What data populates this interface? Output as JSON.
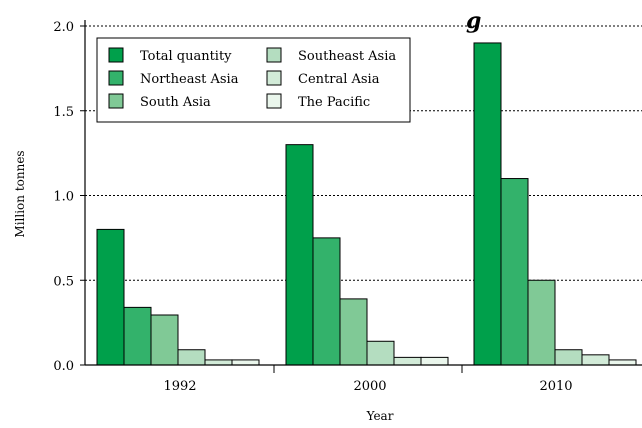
{
  "chart_data": {
    "type": "bar",
    "title": "g",
    "xlabel": "Year",
    "ylabel": "Million tonnes",
    "categories": [
      "1992",
      "2000",
      "2010"
    ],
    "ylim": [
      0,
      2.0
    ],
    "yticks": [
      "0.0",
      "0.5",
      "1.0",
      "1.5",
      "2.0"
    ],
    "grid": "horizontal dotted",
    "legend_position": "top-left",
    "series": [
      {
        "name": "Total quantity",
        "color": "#00a04b",
        "values": [
          0.8,
          1.3,
          1.9
        ]
      },
      {
        "name": "Northeast Asia",
        "color": "#33b26b",
        "values": [
          0.34,
          0.75,
          1.1
        ]
      },
      {
        "name": "South Asia",
        "color": "#80c996",
        "values": [
          0.295,
          0.39,
          0.5
        ]
      },
      {
        "name": "Southeast Asia",
        "color": "#b4ddc0",
        "values": [
          0.09,
          0.14,
          0.09
        ]
      },
      {
        "name": "Central Asia",
        "color": "#d2ebd8",
        "values": [
          0.03,
          0.045,
          0.06
        ]
      },
      {
        "name": "The Pacific",
        "color": "#eaf6ec",
        "values": [
          0.03,
          0.045,
          0.03
        ]
      }
    ]
  }
}
